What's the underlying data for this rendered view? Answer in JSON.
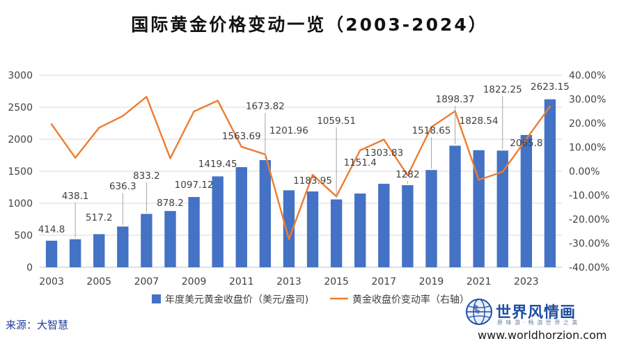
{
  "chart_data": {
    "type": "bar",
    "title": "国际黄金价格变动一览（2003-2024）",
    "categories": [
      "2003",
      "2004",
      "2005",
      "2006",
      "2007",
      "2008",
      "2009",
      "2010",
      "2011",
      "2012",
      "2013",
      "2014",
      "2015",
      "2016",
      "2017",
      "2018",
      "2019",
      "2020",
      "2021",
      "2022",
      "2023",
      "2024"
    ],
    "x_tick_labels": [
      "2003",
      "2005",
      "2007",
      "2009",
      "2011",
      "2013",
      "2015",
      "2017",
      "2019",
      "2021",
      "2023"
    ],
    "series": [
      {
        "name": "年度美元黄金收盘价（美元/盎司)",
        "type": "bar",
        "axis": "left",
        "color": "#4472c4",
        "values": [
          414.8,
          438.1,
          517.2,
          636.3,
          833.2,
          878.2,
          1097.12,
          1419.45,
          1563.69,
          1673.82,
          1201.96,
          1183.95,
          1059.51,
          1151.4,
          1303.83,
          1282,
          1518.65,
          1898.37,
          1828.54,
          1822.25,
          2065.8,
          2623.15
        ],
        "labels": [
          "414.8",
          "438.1",
          "517.2",
          "636.3",
          "833.2",
          "878.2",
          "1097.12",
          "1419.45",
          "1563.69",
          "1673.82",
          "1201.96",
          "1183.95",
          "1059.51",
          "1151.4",
          "1303.83",
          "1282",
          "1518.65",
          "1898.37",
          "1828.54",
          "1822.25",
          "2065.8",
          "2623.15"
        ]
      },
      {
        "name": "黄金收盘价变动率（右轴）",
        "type": "line",
        "axis": "right",
        "color": "#ed7d31",
        "values": [
          19.6,
          5.6,
          18.1,
          23.0,
          31.0,
          5.4,
          24.9,
          29.4,
          10.2,
          7.0,
          -28.3,
          -1.5,
          -10.5,
          8.7,
          13.2,
          -1.7,
          18.4,
          25.0,
          -3.6,
          -0.3,
          13.4,
          27.0
        ]
      }
    ],
    "y_left": {
      "min": 0,
      "max": 3000,
      "ticks": [
        "0",
        "500",
        "1000",
        "1500",
        "2000",
        "2500",
        "3000"
      ]
    },
    "y_right": {
      "min": -40,
      "max": 40,
      "ticks": [
        "-40.00%",
        "-30.00%",
        "-20.00%",
        "-10.00%",
        "0.00%",
        "10.00%",
        "20.00%",
        "30.00%",
        "40.00%"
      ]
    },
    "grid": true,
    "legend": "bottom"
  },
  "source": "来源：大智慧",
  "brand": {
    "name": "世界风情画",
    "tagline": "原 味 游 · 畅 游 世 界 之 美",
    "url": "www.worldhorzion.com"
  }
}
